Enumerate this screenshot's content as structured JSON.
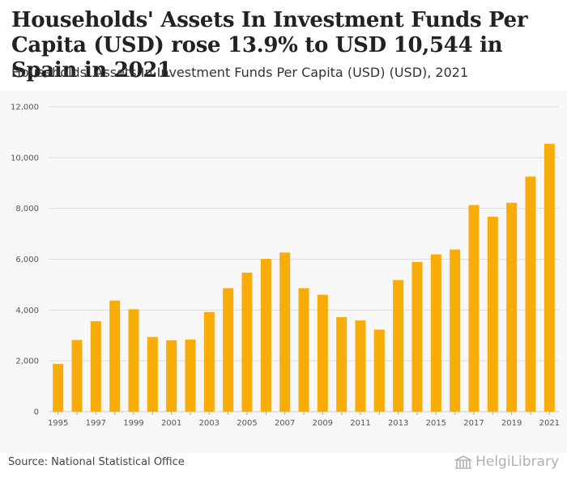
{
  "title": "Households' Assets In Investment Funds Per Capita (USD) rose 13.9% to USD 10,544 in Spain in 2021",
  "subtitle": "Households' Assets In Investment Funds Per Capita (USD) (USD), 2021",
  "source": "Source: National Statistical Office",
  "brand": {
    "name": "HelgiLibrary",
    "icon": "library-building-icon"
  },
  "colors": {
    "bar": "#F7AC08",
    "grid": "#dddddd",
    "plot_bg": "#f7f7f7"
  },
  "chart_data": {
    "type": "bar",
    "categories": [
      "1995",
      "1996",
      "1997",
      "1998",
      "1999",
      "2000",
      "2001",
      "2002",
      "2003",
      "2004",
      "2005",
      "2006",
      "2007",
      "2008",
      "2009",
      "2010",
      "2011",
      "2012",
      "2013",
      "2014",
      "2015",
      "2016",
      "2017",
      "2018",
      "2019",
      "2020",
      "2021"
    ],
    "values": [
      1880,
      2820,
      3560,
      4370,
      4030,
      2940,
      2810,
      2840,
      3920,
      4860,
      5470,
      6010,
      6260,
      4860,
      4600,
      3720,
      3590,
      3230,
      5180,
      5890,
      6190,
      6380,
      8130,
      7670,
      8220,
      9250,
      10544
    ],
    "x_tick_labels": [
      "1995",
      "1997",
      "1999",
      "2001",
      "2003",
      "2005",
      "2007",
      "2009",
      "2011",
      "2013",
      "2015",
      "2017",
      "2019",
      "2021"
    ],
    "y_ticks": [
      "0",
      "2,000",
      "4,000",
      "6,000",
      "8,000",
      "10,000",
      "12,000"
    ],
    "y_tick_values": [
      0,
      2000,
      4000,
      6000,
      8000,
      10000,
      12000
    ],
    "ylim": [
      0,
      12000
    ],
    "xlabel": "",
    "ylabel": "",
    "grid": true,
    "legend": "none"
  }
}
